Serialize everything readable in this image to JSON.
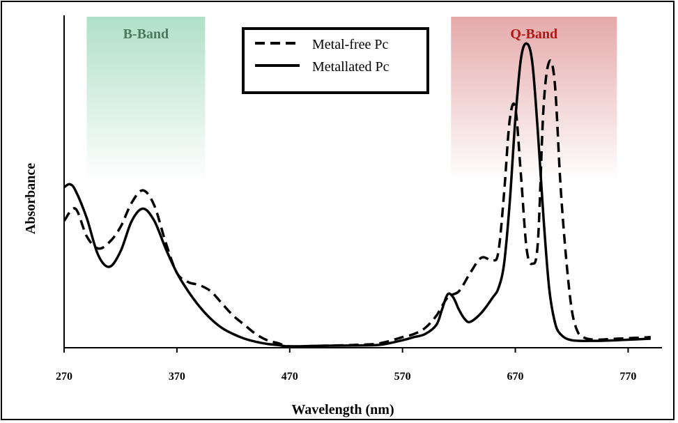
{
  "chart_data": {
    "type": "line",
    "xlabel": "Wavelength (nm)",
    "ylabel": "Absorbance",
    "xlim": [
      270,
      800
    ],
    "ylim": [
      0,
      1.0
    ],
    "x_ticks": [
      "270",
      "370",
      "470",
      "570",
      "670",
      "770"
    ],
    "y_ticks_shown": false,
    "grid": false,
    "legend_placement": "top-center",
    "bands": [
      {
        "label": "B-Band",
        "range": [
          290,
          395
        ],
        "color": "#8fd3b0",
        "text_color": "#4a7a5e"
      },
      {
        "label": "Q-Band",
        "range": [
          613,
          760
        ],
        "color": "#e2a0a0",
        "text_color": "#b01818"
      }
    ],
    "series": [
      {
        "name": "Metal-free Pc",
        "style": "dashed",
        "color": "#000000",
        "x": [
          270,
          280,
          290,
          300,
          310,
          320,
          330,
          340,
          350,
          360,
          370,
          380,
          390,
          400,
          410,
          420,
          430,
          440,
          450,
          460,
          470,
          500,
          530,
          550,
          570,
          580,
          590,
          600,
          610,
          620,
          630,
          640,
          650,
          655,
          660,
          665,
          670,
          675,
          680,
          685,
          690,
          695,
          700,
          705,
          710,
          715,
          720,
          725,
          730,
          740,
          760,
          790
        ],
        "y": [
          0.41,
          0.45,
          0.36,
          0.32,
          0.34,
          0.39,
          0.47,
          0.51,
          0.46,
          0.34,
          0.24,
          0.21,
          0.2,
          0.18,
          0.14,
          0.1,
          0.07,
          0.04,
          0.02,
          0.01,
          0.0,
          0.002,
          0.005,
          0.01,
          0.03,
          0.04,
          0.06,
          0.1,
          0.16,
          0.18,
          0.24,
          0.29,
          0.28,
          0.31,
          0.5,
          0.74,
          0.78,
          0.56,
          0.32,
          0.27,
          0.34,
          0.78,
          0.93,
          0.86,
          0.53,
          0.29,
          0.12,
          0.05,
          0.03,
          0.022,
          0.025,
          0.03
        ]
      },
      {
        "name": "Metallated Pc",
        "style": "solid",
        "color": "#000000",
        "x": [
          270,
          275,
          280,
          290,
          300,
          310,
          320,
          330,
          340,
          350,
          360,
          370,
          380,
          390,
          400,
          410,
          420,
          430,
          440,
          450,
          460,
          470,
          500,
          530,
          550,
          570,
          580,
          590,
          600,
          605,
          610,
          615,
          620,
          625,
          630,
          640,
          650,
          655,
          660,
          665,
          670,
          675,
          680,
          685,
          690,
          695,
          700,
          705,
          710,
          720,
          740,
          760,
          790
        ],
        "y": [
          0.52,
          0.53,
          0.51,
          0.42,
          0.3,
          0.26,
          0.31,
          0.41,
          0.45,
          0.41,
          0.32,
          0.24,
          0.18,
          0.13,
          0.09,
          0.06,
          0.04,
          0.025,
          0.015,
          0.008,
          0.004,
          0.0,
          0.002,
          0.003,
          0.005,
          0.02,
          0.03,
          0.04,
          0.07,
          0.12,
          0.17,
          0.16,
          0.12,
          0.09,
          0.08,
          0.11,
          0.16,
          0.19,
          0.27,
          0.47,
          0.74,
          0.94,
          0.99,
          0.93,
          0.7,
          0.42,
          0.19,
          0.08,
          0.04,
          0.02,
          0.018,
          0.02,
          0.025
        ]
      }
    ]
  }
}
